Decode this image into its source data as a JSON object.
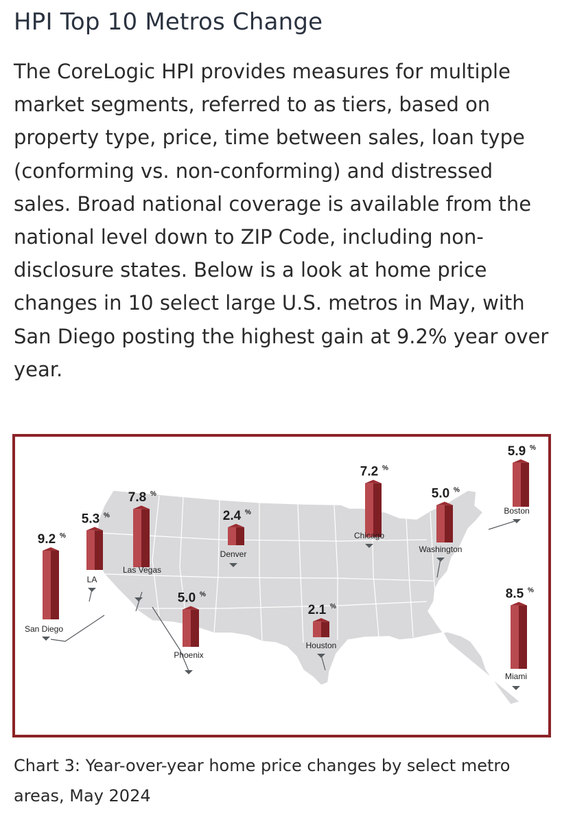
{
  "page": {
    "title": "HPI Top 10 Metros Change",
    "body": "The CoreLogic HPI provides measures for multiple market segments, referred to as tiers, based on property type, price, time between sales, loan type (conforming vs. non-conforming) and distressed sales. Broad national coverage is available from the national level down to ZIP Code, including non-disclosure states. Below is a look at home price changes in 10 select large U.S. metros in May, with San Diego posting the highest gain at 9.2% year over year.",
    "caption": "Chart 3: Year-over-year home price changes by select metro areas, May 2024"
  },
  "chart_data": {
    "type": "bar",
    "unit": "%",
    "categories": [
      "San Diego",
      "LA",
      "Las Vegas",
      "Denver",
      "Phoenix",
      "Houston",
      "Chicago",
      "Washington",
      "Boston",
      "Miami"
    ],
    "values": [
      9.2,
      5.3,
      7.8,
      2.4,
      5.0,
      2.1,
      7.2,
      5.0,
      5.9,
      8.5
    ],
    "labels": [
      "9.2",
      "5.3",
      "7.8",
      "2.4",
      "5.0",
      "2.1",
      "7.2",
      "5.0",
      "5.9",
      "8.5"
    ],
    "title": "",
    "xlabel": "",
    "ylabel": "",
    "colors": {
      "bar": "#9b2c31",
      "bar_dark": "#7e1f24",
      "bar_light": "#b84a4f",
      "map": "#d9d9db",
      "map_border": "#ffffff",
      "frame": "#8c2328",
      "pointer": "#555a5e"
    }
  }
}
